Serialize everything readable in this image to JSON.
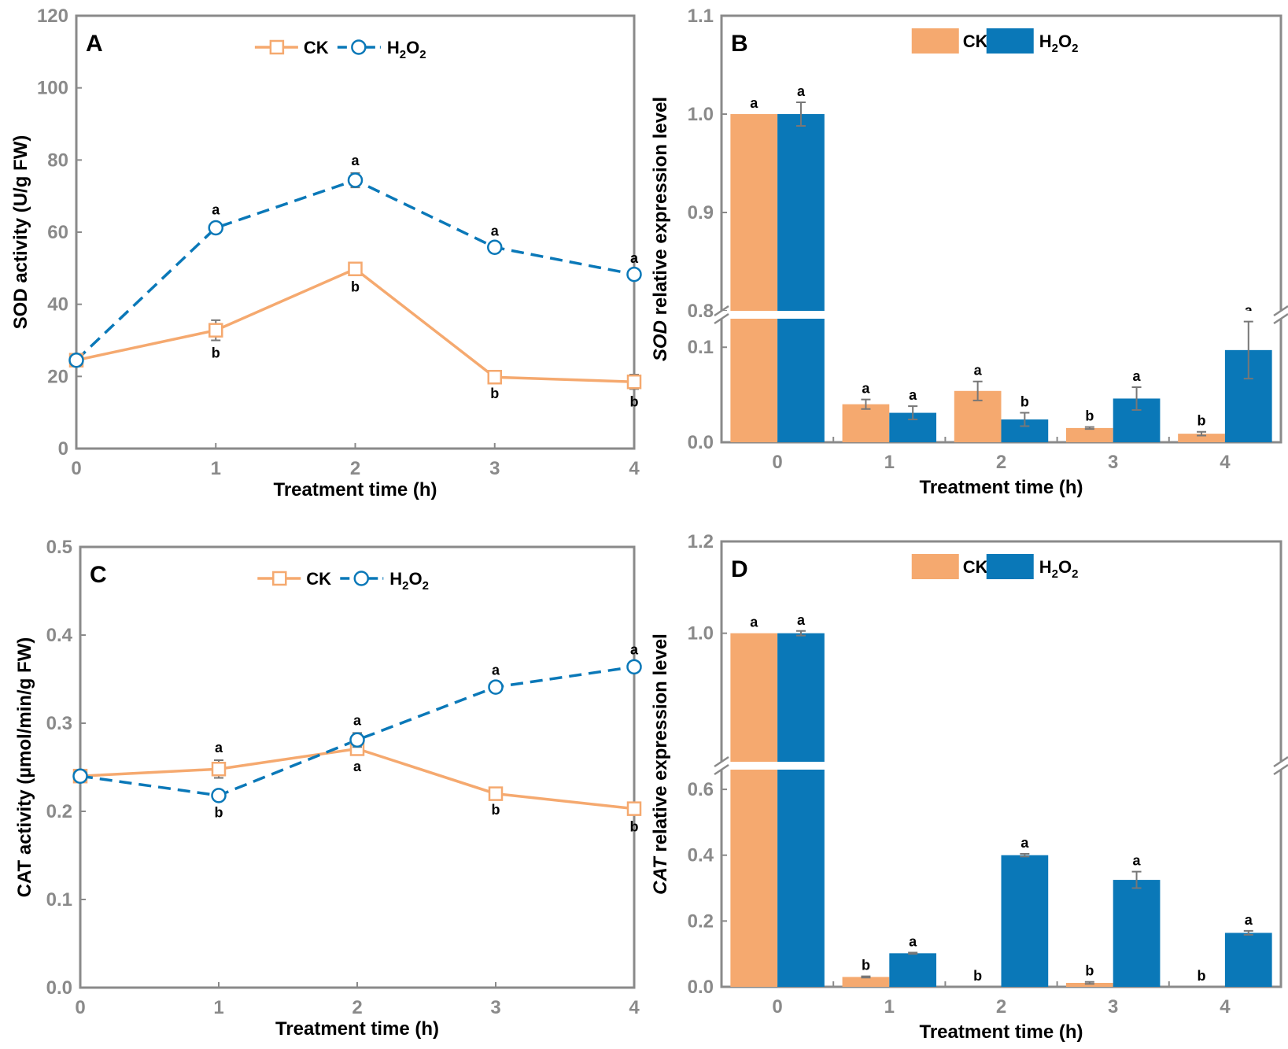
{
  "colors": {
    "ck": "#F5A96F",
    "h2o2": "#0A78B8",
    "frame": "#8A8A8A"
  },
  "chart_data": [
    {
      "panel": "A",
      "type": "line",
      "xlabel": "Treatment time (h)",
      "ylabel": "SOD activity (U/g FW)",
      "xlim": [
        0,
        4
      ],
      "ylim": [
        0,
        120
      ],
      "xticks": [
        "0",
        "1",
        "2",
        "3",
        "4"
      ],
      "yticks": [
        "0",
        "20",
        "40",
        "60",
        "80",
        "100",
        "120"
      ],
      "x": [
        0,
        1,
        2,
        3,
        4
      ],
      "legend": [
        "CK",
        "H2O2"
      ],
      "series": [
        {
          "name": "CK",
          "values": [
            24.5,
            32.8,
            49.8,
            19.8,
            18.5
          ],
          "errors": [
            1.0,
            2.8,
            1.5,
            1.0,
            2.0
          ],
          "labels": [
            "",
            "b",
            "b",
            "b",
            "b"
          ],
          "label_pos": "below"
        },
        {
          "name": "H2O2",
          "values": [
            24.5,
            61.2,
            74.4,
            55.8,
            48.3
          ],
          "errors": [
            1.0,
            1.5,
            2.0,
            1.0,
            1.0
          ],
          "labels": [
            "",
            "a",
            "a",
            "a",
            "a"
          ],
          "label_pos": "above"
        }
      ]
    },
    {
      "panel": "B",
      "type": "bar",
      "xlabel": "Treatment time (h)",
      "ylabel_italic": "SOD",
      "ylabel_rest": " relative expression level",
      "categories": [
        "0",
        "1",
        "2",
        "3",
        "4"
      ],
      "axis_break": {
        "lower": [
          0,
          0.13
        ],
        "upper": [
          0.8,
          1.1
        ]
      },
      "lower_ticks": [
        "0.0",
        "0.1"
      ],
      "upper_ticks": [
        "0.8",
        "0.9",
        "1.0",
        "1.1"
      ],
      "legend": [
        "CK",
        "H2O2"
      ],
      "series": [
        {
          "name": "CK",
          "values": [
            1.0,
            0.04,
            0.054,
            0.015,
            0.009
          ],
          "errors": [
            0,
            0.005,
            0.01,
            0.001,
            0.002
          ],
          "labels": [
            "a",
            "a",
            "a",
            "b",
            "b"
          ]
        },
        {
          "name": "H2O2",
          "values": [
            1.0,
            0.031,
            0.024,
            0.046,
            0.097
          ],
          "errors": [
            0.012,
            0.007,
            0.007,
            0.012,
            0.03
          ],
          "labels": [
            "a",
            "a",
            "b",
            "a",
            "a"
          ]
        }
      ]
    },
    {
      "panel": "C",
      "type": "line",
      "xlabel": "Treatment time (h)",
      "ylabel": "CAT activity (µmol/min/g FW)",
      "xlim": [
        0,
        4
      ],
      "ylim": [
        0,
        0.5
      ],
      "xticks": [
        "0",
        "1",
        "2",
        "3",
        "4"
      ],
      "yticks": [
        "0.0",
        "0.1",
        "0.2",
        "0.3",
        "0.4",
        "0.5"
      ],
      "x": [
        0,
        1,
        2,
        3,
        4
      ],
      "legend": [
        "CK",
        "H2O2"
      ],
      "series": [
        {
          "name": "CK",
          "values": [
            0.24,
            0.248,
            0.271,
            0.22,
            0.203
          ],
          "errors": [
            0.002,
            0.01,
            0.006,
            0.004,
            0.006
          ],
          "labels": [
            "",
            "a",
            "a",
            "b",
            "b"
          ],
          "label_pos": "mixed"
        },
        {
          "name": "H2O2",
          "values": [
            0.24,
            0.218,
            0.281,
            0.341,
            0.364
          ],
          "errors": [
            0.002,
            0.005,
            0.008,
            0.005,
            0.005
          ],
          "labels": [
            "",
            "b",
            "a",
            "a",
            "a"
          ],
          "label_pos": "mixed"
        }
      ]
    },
    {
      "panel": "D",
      "type": "bar",
      "xlabel": "Treatment time (h)",
      "ylabel_italic": "CAT",
      "ylabel_rest": " relative expression level",
      "categories": [
        "0",
        "1",
        "2",
        "3",
        "4"
      ],
      "axis_break": {
        "lower": [
          0,
          0.66
        ],
        "upper": [
          0.72,
          1.2
        ]
      },
      "lower_ticks": [
        "0.0",
        "0.2",
        "0.4",
        "0.6"
      ],
      "upper_ticks": [
        "1.0",
        "1.2"
      ],
      "legend": [
        "CK",
        "H2O2"
      ],
      "series": [
        {
          "name": "CK",
          "values": [
            1.0,
            0.03,
            0.0,
            0.012,
            0.0
          ],
          "errors": [
            0,
            0.002,
            0,
            0.003,
            0
          ],
          "labels": [
            "a",
            "b",
            "b",
            "b",
            "b"
          ]
        },
        {
          "name": "H2O2",
          "values": [
            1.0,
            0.102,
            0.4,
            0.325,
            0.164
          ],
          "errors": [
            0.005,
            0.002,
            0.004,
            0.025,
            0.006
          ],
          "labels": [
            "a",
            "a",
            "a",
            "a",
            "a"
          ]
        }
      ]
    }
  ]
}
